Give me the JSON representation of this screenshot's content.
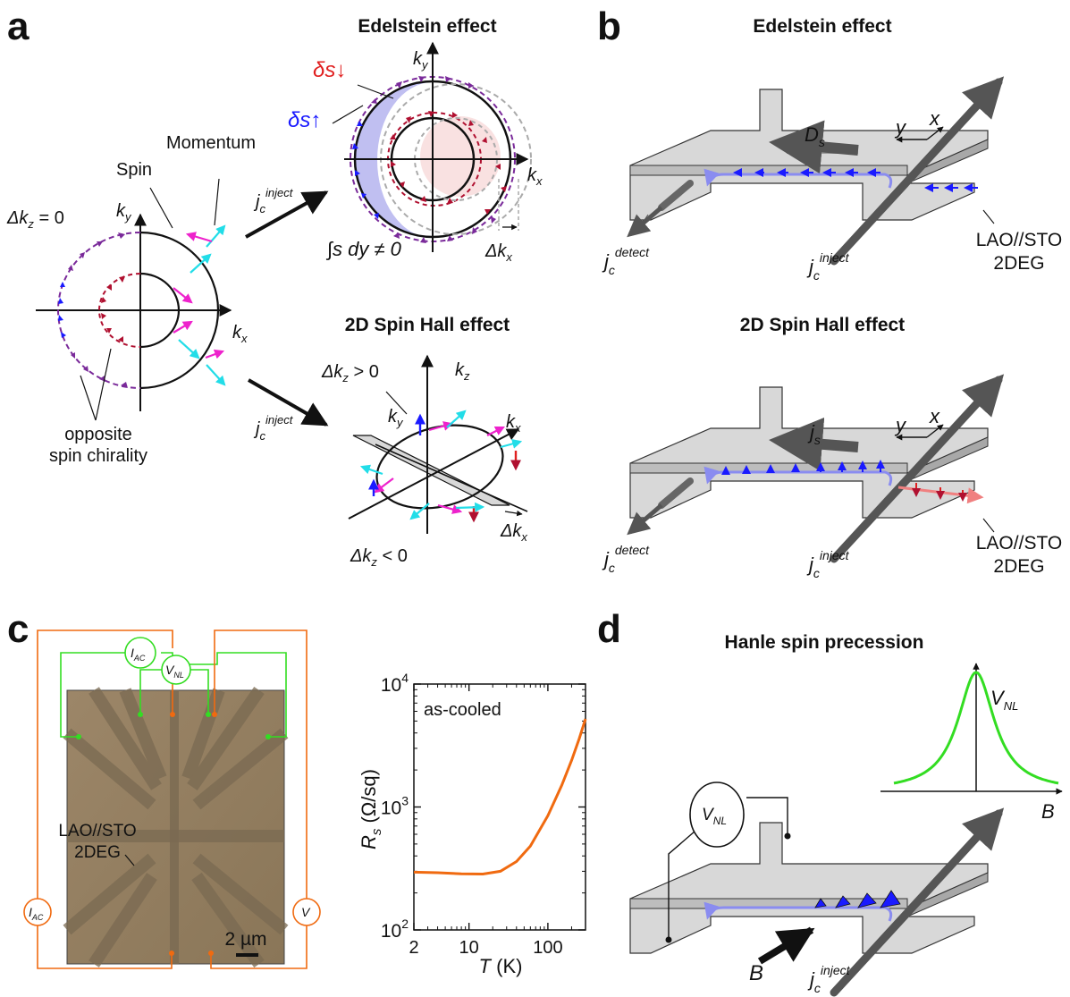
{
  "panels": {
    "a": {
      "letter": "a",
      "title_edelstein": "Edelstein effect",
      "title_spinhall": "2D Spin Hall effect",
      "dkz_zero": "Δk",
      "dkz_zero_sub": "z",
      "dkz_zero_rest": " = 0",
      "spin": "Spin",
      "momentum": "Momentum",
      "opposite": "opposite",
      "spin_chirality": "spin chirality",
      "ky": "k",
      "ky_sub": "y",
      "kx": "k",
      "kx_sub": "x",
      "kz_sub": "z",
      "ds_down": "δs",
      "ds_up": "δs",
      "integral": "∫s dy ≠ 0",
      "dkx": "Δk",
      "dkx_sub": "x",
      "dkz_gt": "Δk",
      "dkz_gt_rest": " > 0",
      "dkz_lt": "Δk",
      "dkz_lt_rest": " < 0",
      "jc": "j",
      "jc_sub": "c",
      "jc_sup": "inject"
    },
    "b": {
      "letter": "b",
      "title_edelstein": "Edelstein effect",
      "title_spinhall": "2D Spin Hall effect",
      "ds": "D",
      "ds_sub": "s",
      "js": "j",
      "js_sub": "s",
      "axis_y": "y",
      "axis_x": "x",
      "detect_sup": "detect",
      "inject_sup": "inject",
      "j": "j",
      "c": "c",
      "material_1": "LAO//STO",
      "material_2": "2DEG"
    },
    "c": {
      "letter": "c",
      "iac": "I",
      "iac_sub": "AC",
      "vnl": "V",
      "vnl_sub": "NL",
      "v": "V",
      "material_1": "LAO//STO",
      "material_2": "2DEG",
      "scale": "2 µm"
    },
    "d": {
      "letter": "d",
      "title": "Hanle spin precession",
      "vnl": "V",
      "vnl_sub": "NL",
      "b": "B",
      "j": "j",
      "c": "c",
      "inject_sup": "inject"
    }
  },
  "colors": {
    "purple": "#7a2a9a",
    "blue": "#1a1aff",
    "red": "#e02020",
    "darkred": "#b01030",
    "cyan": "#22dde8",
    "magenta": "#ee22cc",
    "orange": "#f06a10",
    "green": "#33dd22",
    "slab": "#d8d8d8",
    "lightblue": "#8a8cf0",
    "wire": "#555555"
  },
  "chart_data": [
    {
      "type": "line",
      "title": "",
      "annotation": "as-cooled",
      "xlabel": "T (K)",
      "ylabel": "R_s (Ω/sq)",
      "xscale": "log",
      "yscale": "log",
      "xlim": [
        2,
        300
      ],
      "ylim": [
        100,
        10000
      ],
      "xticks": [
        "2",
        "10",
        "100"
      ],
      "yticks": [
        "10^2",
        "10^3",
        "10^4"
      ],
      "series": [
        {
          "x": [
            2,
            4,
            8,
            15,
            25,
            40,
            60,
            100,
            150,
            200,
            250,
            300
          ],
          "y": [
            295,
            292,
            286,
            285,
            300,
            360,
            480,
            850,
            1500,
            2400,
            3600,
            5200
          ]
        }
      ]
    },
    {
      "type": "line",
      "title": "",
      "xlabel": "B",
      "ylabel": "V_NL",
      "series": [
        {
          "shape": "lorentzian",
          "center": 0
        }
      ]
    }
  ]
}
